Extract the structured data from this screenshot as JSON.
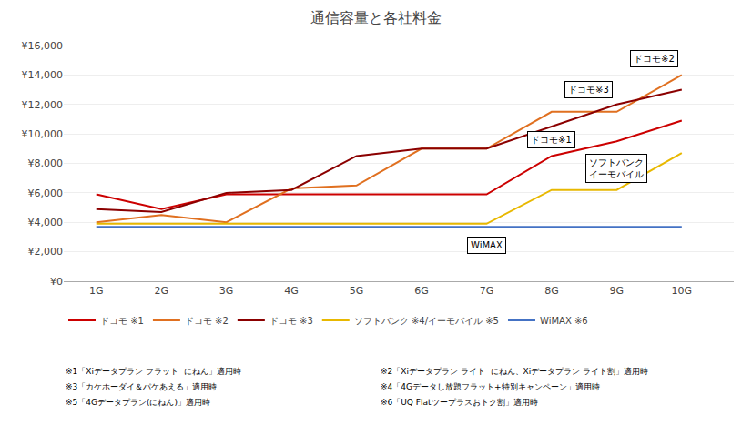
{
  "chart_data": {
    "type": "line",
    "title": "通信容量と各社料金",
    "x": [
      1,
      2,
      3,
      4,
      5,
      6,
      7,
      8,
      9,
      10
    ],
    "xlim": [
      0.5,
      10.8
    ],
    "xticks": [
      {
        "value": 1,
        "label": "1G"
      },
      {
        "value": 2,
        "label": "2G"
      },
      {
        "value": 3,
        "label": "3G"
      },
      {
        "value": 4,
        "label": "4G"
      },
      {
        "value": 5,
        "label": "5G"
      },
      {
        "value": 6,
        "label": "6G"
      },
      {
        "value": 7,
        "label": "7G"
      },
      {
        "value": 8,
        "label": "8G"
      },
      {
        "value": 9,
        "label": "9G"
      },
      {
        "value": 10,
        "label": "10G"
      }
    ],
    "ylim": [
      0,
      16000
    ],
    "yticks": [
      {
        "value": 0,
        "label": "¥0"
      },
      {
        "value": 2000,
        "label": "¥2,000"
      },
      {
        "value": 4000,
        "label": "¥4,000"
      },
      {
        "value": 6000,
        "label": "¥6,000"
      },
      {
        "value": 8000,
        "label": "¥8,000"
      },
      {
        "value": 10000,
        "label": "¥10,000"
      },
      {
        "value": 12000,
        "label": "¥12,000"
      },
      {
        "value": 14000,
        "label": "¥14,000"
      },
      {
        "value": 16000,
        "label": "¥16,000"
      }
    ],
    "series": [
      {
        "name": "ドコモ ※1",
        "color": "#cc0000",
        "values": [
          5900,
          4900,
          5900,
          5900,
          5900,
          5900,
          5900,
          8500,
          9500,
          10900
        ]
      },
      {
        "name": "ドコモ ※2",
        "color": "#e07020",
        "values": [
          4000,
          4500,
          4000,
          6300,
          6500,
          9000,
          9000,
          11500,
          11500,
          14000
        ]
      },
      {
        "name": "ドコモ ※3",
        "color": "#8b0000",
        "values": [
          4900,
          4700,
          6000,
          6200,
          8500,
          9000,
          9000,
          10500,
          12000,
          13000
        ]
      },
      {
        "name": "ソフトバンク ※4/イーモバイル ※5",
        "color": "#e8b800",
        "values": [
          3900,
          3900,
          3900,
          3900,
          3900,
          3900,
          3900,
          6200,
          6200,
          8700
        ]
      },
      {
        "name": "WiMAX ※6",
        "color": "#4472c4",
        "values": [
          3696,
          3696,
          3696,
          3696,
          3696,
          3696,
          3696,
          3696,
          3696,
          3696
        ]
      }
    ],
    "annotations": [
      "ドコモ※1",
      "ドコモ※2",
      "ドコモ※3",
      "ソフトバンク\nイーモバイル",
      "WiMAX"
    ],
    "footnotes": [
      "※1「Xiデータプラン フラット  にねん」適用時",
      "※2「Xiデータプラン ライト  にねん、Xiデータプラン ライト割」適用時",
      "※3「カケホーダイ＆パケあえる」適用時",
      "※4「4Gデータし放題フラット+特別キャンペーン」適用時",
      "※5「4Gデータプラン(にねん)」適用時",
      "※6「UQ Flatツープラスおトク割」適用時"
    ],
    "grid": "y",
    "legend": "bottom"
  }
}
